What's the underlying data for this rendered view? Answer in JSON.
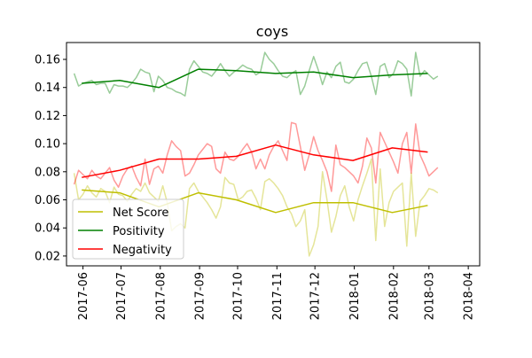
{
  "chart_data": {
    "type": "line",
    "title": "coys",
    "xlabel": "",
    "ylabel": "",
    "x_start": "2017-05-25",
    "x_step_days": 3.5,
    "xlim": [
      "2017-05-19",
      "2018-04-10"
    ],
    "ylim": [
      0.013,
      0.172
    ],
    "yticks": [
      0.02,
      0.04,
      0.06,
      0.08,
      0.1,
      0.12,
      0.14,
      0.16
    ],
    "ytick_labels": [
      "0.02",
      "0.04",
      "0.06",
      "0.08",
      "0.10",
      "0.12",
      "0.14",
      "0.16"
    ],
    "xticks": [
      "2017-06-01",
      "2017-07-01",
      "2017-08-01",
      "2017-09-01",
      "2017-10-01",
      "2017-11-01",
      "2017-12-01",
      "2018-01-01",
      "2018-02-01",
      "2018-03-01",
      "2018-04-01"
    ],
    "xtick_labels": [
      "2017-06",
      "2017-07",
      "2017-08",
      "2017-09",
      "2017-10",
      "2017-11",
      "2017-12",
      "2018-01",
      "2018-02",
      "2018-03",
      "2018-04"
    ],
    "grid": false,
    "legend_position": "lower-left",
    "raw_series": [
      {
        "name": "Net Score",
        "color": "#bfbf00",
        "opacity": 0.4,
        "values": [
          0.079,
          0.06,
          0.064,
          0.07,
          0.065,
          0.062,
          0.068,
          0.066,
          0.058,
          0.069,
          0.064,
          0.063,
          0.059,
          0.064,
          0.068,
          0.066,
          0.072,
          0.065,
          0.062,
          0.059,
          0.07,
          0.058,
          0.038,
          0.041,
          0.043,
          0.04,
          0.068,
          0.072,
          0.066,
          0.062,
          0.058,
          0.053,
          0.047,
          0.055,
          0.076,
          0.072,
          0.071,
          0.06,
          0.062,
          0.066,
          0.067,
          0.061,
          0.053,
          0.073,
          0.075,
          0.072,
          0.068,
          0.063,
          0.055,
          0.05,
          0.041,
          0.045,
          0.053,
          0.02,
          0.028,
          0.041,
          0.08,
          0.06,
          0.037,
          0.048,
          0.063,
          0.07,
          0.055,
          0.045,
          0.06,
          0.07,
          0.079,
          0.089,
          0.031,
          0.082,
          0.041,
          0.058,
          0.066,
          0.069,
          0.072,
          0.027,
          0.079,
          0.034,
          0.059,
          0.063,
          0.068,
          0.067,
          0.065
        ]
      },
      {
        "name": "Positivity",
        "color": "#008000",
        "opacity": 0.4,
        "values": [
          0.15,
          0.141,
          0.143,
          0.144,
          0.145,
          0.142,
          0.143,
          0.143,
          0.136,
          0.142,
          0.141,
          0.141,
          0.14,
          0.143,
          0.147,
          0.153,
          0.151,
          0.15,
          0.137,
          0.148,
          0.145,
          0.14,
          0.139,
          0.137,
          0.136,
          0.134,
          0.153,
          0.159,
          0.155,
          0.151,
          0.15,
          0.148,
          0.152,
          0.157,
          0.152,
          0.148,
          0.151,
          0.153,
          0.156,
          0.154,
          0.153,
          0.149,
          0.151,
          0.165,
          0.16,
          0.157,
          0.152,
          0.148,
          0.147,
          0.15,
          0.152,
          0.135,
          0.141,
          0.152,
          0.162,
          0.153,
          0.142,
          0.151,
          0.147,
          0.155,
          0.158,
          0.144,
          0.143,
          0.146,
          0.152,
          0.157,
          0.158,
          0.148,
          0.135,
          0.155,
          0.157,
          0.147,
          0.15,
          0.159,
          0.157,
          0.153,
          0.134,
          0.165,
          0.148,
          0.152,
          0.149,
          0.146,
          0.148
        ]
      },
      {
        "name": "Negativity",
        "color": "#ff0000",
        "opacity": 0.4,
        "values": [
          0.071,
          0.081,
          0.078,
          0.075,
          0.081,
          0.077,
          0.075,
          0.079,
          0.083,
          0.074,
          0.069,
          0.077,
          0.082,
          0.084,
          0.076,
          0.07,
          0.089,
          0.071,
          0.082,
          0.084,
          0.079,
          0.092,
          0.102,
          0.098,
          0.095,
          0.077,
          0.079,
          0.085,
          0.092,
          0.096,
          0.1,
          0.098,
          0.082,
          0.079,
          0.094,
          0.089,
          0.088,
          0.091,
          0.096,
          0.1,
          0.094,
          0.082,
          0.089,
          0.082,
          0.092,
          0.098,
          0.102,
          0.095,
          0.088,
          0.115,
          0.114,
          0.098,
          0.081,
          0.092,
          0.105,
          0.095,
          0.088,
          0.08,
          0.066,
          0.099,
          0.085,
          0.083,
          0.08,
          0.077,
          0.072,
          0.084,
          0.104,
          0.097,
          0.072,
          0.108,
          0.101,
          0.094,
          0.087,
          0.079,
          0.1,
          0.108,
          0.079,
          0.114,
          0.092,
          0.085,
          0.077,
          0.08,
          0.083
        ]
      }
    ],
    "series": [
      {
        "name": "Net Score",
        "color": "#bfbf00",
        "x": [
          "2017-05-31",
          "2017-06-30",
          "2017-07-31",
          "2017-08-31",
          "2017-09-30",
          "2017-10-31",
          "2017-11-30",
          "2017-12-31",
          "2018-01-31",
          "2018-02-28"
        ],
        "values": [
          0.067,
          0.065,
          0.055,
          0.065,
          0.06,
          0.051,
          0.058,
          0.058,
          0.051,
          0.056
        ]
      },
      {
        "name": "Positivity",
        "color": "#008000",
        "x": [
          "2017-05-31",
          "2017-06-30",
          "2017-07-31",
          "2017-08-31",
          "2017-09-30",
          "2017-10-31",
          "2017-11-30",
          "2017-12-31",
          "2018-01-31",
          "2018-02-28"
        ],
        "values": [
          0.143,
          0.145,
          0.14,
          0.153,
          0.152,
          0.15,
          0.151,
          0.147,
          0.149,
          0.15
        ]
      },
      {
        "name": "Negativity",
        "color": "#ff0000",
        "x": [
          "2017-05-31",
          "2017-06-30",
          "2017-07-31",
          "2017-08-31",
          "2017-09-30",
          "2017-10-31",
          "2017-11-30",
          "2017-12-31",
          "2018-01-31",
          "2018-02-28"
        ],
        "values": [
          0.076,
          0.081,
          0.089,
          0.089,
          0.091,
          0.099,
          0.092,
          0.088,
          0.097,
          0.094
        ]
      }
    ]
  }
}
